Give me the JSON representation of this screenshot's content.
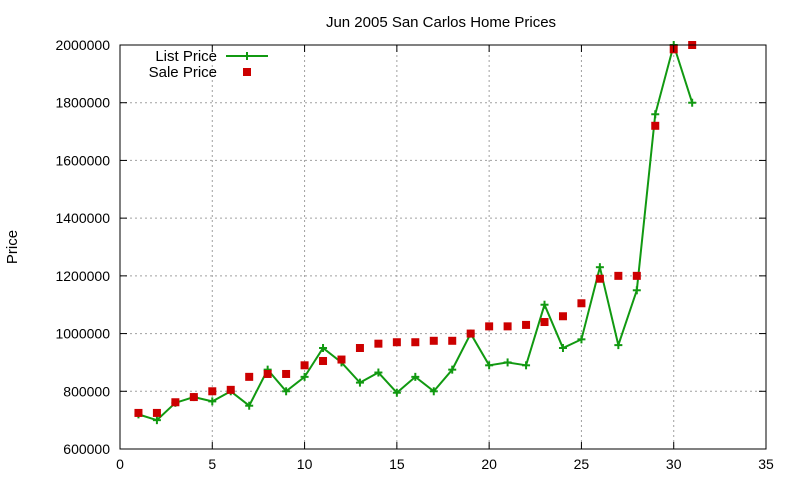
{
  "chart_data": {
    "type": "line",
    "title": "Jun 2005 San Carlos Home Prices",
    "xlabel": "",
    "ylabel": "Price",
    "xlim": [
      0,
      35
    ],
    "ylim": [
      600000,
      2000000
    ],
    "xticks": [
      0,
      5,
      10,
      15,
      20,
      25,
      30,
      35
    ],
    "yticks": [
      600000,
      800000,
      1000000,
      1200000,
      1400000,
      1600000,
      1800000,
      2000000
    ],
    "grid": true,
    "legend_position": "top-left",
    "series": [
      {
        "name": "List Price",
        "style": "line+cross",
        "color": "#119911",
        "x": [
          1,
          2,
          3,
          4,
          5,
          6,
          7,
          8,
          9,
          10,
          11,
          12,
          13,
          14,
          15,
          16,
          17,
          18,
          19,
          20,
          21,
          22,
          23,
          24,
          25,
          26,
          27,
          28,
          29,
          30,
          31
        ],
        "y": [
          720000,
          700000,
          760000,
          780000,
          765000,
          800000,
          750000,
          875000,
          800000,
          850000,
          950000,
          900000,
          830000,
          865000,
          795000,
          850000,
          800000,
          875000,
          1000000,
          890000,
          900000,
          890000,
          1100000,
          950000,
          980000,
          1230000,
          960000,
          1150000,
          1760000,
          2000000,
          1800000
        ]
      },
      {
        "name": "Sale Price",
        "style": "square",
        "color": "#cc0000",
        "x": [
          1,
          2,
          3,
          4,
          5,
          6,
          7,
          8,
          9,
          10,
          11,
          12,
          13,
          14,
          15,
          16,
          17,
          18,
          19,
          20,
          21,
          22,
          23,
          24,
          25,
          26,
          27,
          28,
          29,
          30,
          31
        ],
        "y": [
          725000,
          725000,
          762000,
          780000,
          800000,
          805000,
          850000,
          860000,
          860000,
          890000,
          905000,
          910000,
          950000,
          965000,
          970000,
          970000,
          975000,
          975000,
          1000000,
          1025000,
          1025000,
          1030000,
          1040000,
          1060000,
          1105000,
          1190000,
          1200000,
          1200000,
          1720000,
          1985000,
          2000000
        ]
      }
    ]
  }
}
